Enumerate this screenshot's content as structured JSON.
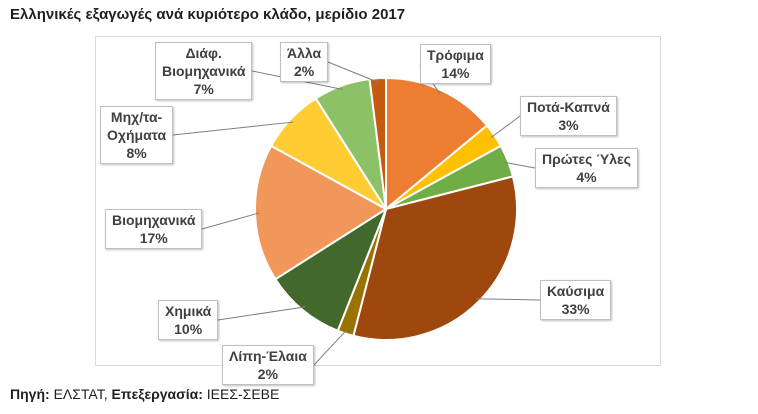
{
  "title": "Ελληνικές εξαγωγές ανά κυριότερο κλάδο, μερίδιο 2017",
  "source": {
    "label1": "Πηγή:",
    "value1": "ΕΛΣΤΑΤ,",
    "label2": "Επεξεργασία:",
    "value2": "ΙΕΕΣ-ΣΕΒΕ"
  },
  "chart_data": {
    "type": "pie",
    "title": "Ελληνικές εξαγωγές ανά κυριότερο κλάδο, μερίδιο 2017",
    "slices": [
      {
        "name": "Τρόφιμα",
        "value": 14,
        "label": "14%",
        "color": "#ED7D31"
      },
      {
        "name": "Ποτά-Καπνά",
        "value": 3,
        "label": "3%",
        "color": "#FFC000"
      },
      {
        "name": "Πρώτες Ύλες",
        "value": 4,
        "label": "4%",
        "color": "#70AD47"
      },
      {
        "name": "Καύσιμα",
        "value": 33,
        "label": "33%",
        "color": "#9E480E"
      },
      {
        "name": "Λίπη-Έλαια",
        "value": 2,
        "label": "2%",
        "color": "#997300"
      },
      {
        "name": "Χημικά",
        "value": 10,
        "label": "10%",
        "color": "#43682B"
      },
      {
        "name": "Βιομηχανικά",
        "value": 17,
        "label": "17%",
        "color": "#F1975A"
      },
      {
        "name": "Μηχ/τα-Οχήματα",
        "value": 8,
        "label": "8%",
        "color": "#FFCD33"
      },
      {
        "name": "Διάφ. Βιομηχανικά",
        "value": 7,
        "label": "7%",
        "color": "#8CC168"
      },
      {
        "name": "Άλλα",
        "value": 2,
        "label": "2%",
        "color": "#C55A11"
      }
    ]
  },
  "labels": [
    {
      "lines": [
        "Τρόφιμα",
        "14%"
      ]
    },
    {
      "lines": [
        "Ποτά-Καπνά",
        "3%"
      ]
    },
    {
      "lines": [
        "Πρώτες Ύλες",
        "4%"
      ]
    },
    {
      "lines": [
        "Καύσιμα",
        "33%"
      ]
    },
    {
      "lines": [
        "Λίπη-Έλαια",
        "2%"
      ]
    },
    {
      "lines": [
        "Χημικά",
        "10%"
      ]
    },
    {
      "lines": [
        "Βιομηχανικά",
        "17%"
      ]
    },
    {
      "lines": [
        "Μηχ/τα-",
        "Οχήματα",
        "8%"
      ]
    },
    {
      "lines": [
        "Διάφ.",
        "Βιομηχανικά",
        "7%"
      ]
    },
    {
      "lines": [
        "Άλλα",
        "2%"
      ]
    }
  ]
}
